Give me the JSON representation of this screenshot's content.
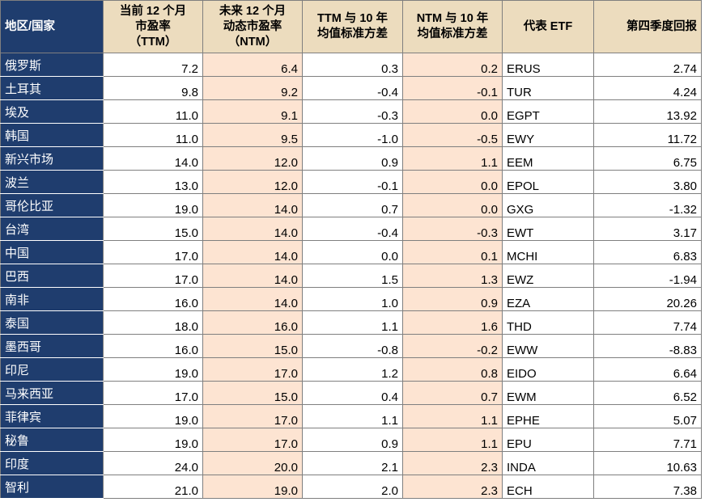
{
  "table": {
    "header": [
      "地区/国家",
      "当前 12 个月\n市盈率\n（TTM）",
      "未来 12 个月\n动态市盈率\n（NTM）",
      "TTM 与 10 年\n均值标准方差",
      "NTM 与 10 年\n均值标准方差",
      "代表 ETF",
      "第四季度回报"
    ],
    "rows": [
      [
        "俄罗斯",
        "7.2",
        "6.4",
        "0.3",
        "0.2",
        "ERUS",
        "2.74"
      ],
      [
        "土耳其",
        "9.8",
        "9.2",
        "-0.4",
        "-0.1",
        "TUR",
        "4.24"
      ],
      [
        "埃及",
        "11.0",
        "9.1",
        "-0.3",
        "0.0",
        "EGPT",
        "13.92"
      ],
      [
        "韩国",
        "11.0",
        "9.5",
        "-1.0",
        "-0.5",
        "EWY",
        "11.72"
      ],
      [
        "新兴市场",
        "14.0",
        "12.0",
        "0.9",
        "1.1",
        "EEM",
        "6.75"
      ],
      [
        "波兰",
        "13.0",
        "12.0",
        "-0.1",
        "0.0",
        "EPOL",
        "3.80"
      ],
      [
        "哥伦比亚",
        "19.0",
        "14.0",
        "0.7",
        "0.0",
        "GXG",
        "-1.32"
      ],
      [
        "台湾",
        "15.0",
        "14.0",
        "-0.4",
        "-0.3",
        "EWT",
        "3.17"
      ],
      [
        "中国",
        "17.0",
        "14.0",
        "0.0",
        "0.1",
        "MCHI",
        "6.83"
      ],
      [
        "巴西",
        "17.0",
        "14.0",
        "1.5",
        "1.3",
        "EWZ",
        "-1.94"
      ],
      [
        "南非",
        "16.0",
        "14.0",
        "1.0",
        "0.9",
        "EZA",
        "20.26"
      ],
      [
        "泰国",
        "18.0",
        "16.0",
        "1.1",
        "1.6",
        "THD",
        "7.74"
      ],
      [
        "墨西哥",
        "16.0",
        "15.0",
        "-0.8",
        "-0.2",
        "EWW",
        "-8.83"
      ],
      [
        "印尼",
        "19.0",
        "17.0",
        "1.2",
        "0.8",
        "EIDO",
        "6.64"
      ],
      [
        "马来西亚",
        "17.0",
        "15.0",
        "0.4",
        "0.7",
        "EWM",
        "6.52"
      ],
      [
        "菲律宾",
        "19.0",
        "17.0",
        "1.1",
        "1.1",
        "EPHE",
        "5.07"
      ],
      [
        "秘鲁",
        "19.0",
        "17.0",
        "0.9",
        "1.1",
        "EPU",
        "7.71"
      ],
      [
        "印度",
        "24.0",
        "20.0",
        "2.1",
        "2.3",
        "INDA",
        "10.63"
      ],
      [
        "智利",
        "21.0",
        "19.0",
        "2.0",
        "2.3",
        "ECH",
        "7.38"
      ]
    ]
  }
}
